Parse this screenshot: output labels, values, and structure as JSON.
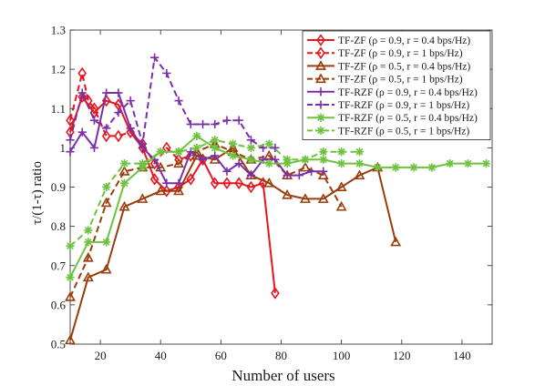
{
  "chart_data": {
    "type": "line",
    "title": "",
    "xlabel": "Number of users",
    "ylabel": "τ/(1-τ) ratio",
    "xlim": [
      10,
      150
    ],
    "ylim": [
      0.5,
      1.3
    ],
    "xticks": [
      20,
      40,
      60,
      80,
      100,
      120,
      140
    ],
    "yticks": [
      0.5,
      0.6,
      0.7,
      0.8,
      0.9,
      1.0,
      1.1,
      1.2,
      1.3
    ],
    "grid": false,
    "legend_position": "top-right",
    "series": [
      {
        "name": "TF-ZF (ρ = 0.9, r = 0.4 bps/Hz)",
        "color": "#e8141e",
        "dash": "solid",
        "marker": "diamond",
        "x": [
          10,
          14,
          18,
          22,
          26,
          30,
          34,
          38,
          42,
          46,
          50,
          54,
          58,
          62,
          66,
          70,
          74,
          78
        ],
        "y": [
          1.04,
          1.13,
          1.09,
          1.12,
          1.11,
          1.04,
          1.0,
          0.92,
          0.89,
          0.9,
          0.92,
          0.97,
          0.91,
          0.91,
          0.91,
          0.9,
          0.91,
          0.63
        ]
      },
      {
        "name": "TF-ZF (ρ = 0.9, r = 1 bps/Hz)",
        "color": "#e8141e",
        "dash": "dashed",
        "marker": "diamond",
        "x": [
          10,
          14,
          16,
          18,
          22,
          26,
          30,
          34,
          38,
          42,
          46,
          50
        ],
        "y": [
          1.07,
          1.19,
          1.12,
          1.1,
          1.03,
          1.03,
          1.04,
          1.01,
          0.96,
          1.0,
          0.97,
          0.98
        ]
      },
      {
        "name": "TF-ZF (ρ = 0.5, r = 0.4 bps/Hz)",
        "color": "#9a3d0d",
        "dash": "solid",
        "marker": "triangle",
        "x": [
          10,
          16,
          22,
          28,
          34,
          40,
          46,
          52,
          58,
          64,
          70,
          76,
          82,
          88,
          94,
          100,
          106,
          112,
          118
        ],
        "y": [
          0.51,
          0.67,
          0.69,
          0.85,
          0.87,
          0.89,
          0.89,
          0.98,
          0.97,
          1.0,
          0.93,
          0.91,
          0.88,
          0.87,
          0.87,
          0.9,
          0.93,
          0.95,
          0.76
        ]
      },
      {
        "name": "TF-ZF (ρ = 0.5, r = 1 bps/Hz)",
        "color": "#9a3d0d",
        "dash": "dashed",
        "marker": "triangle",
        "x": [
          10,
          16,
          22,
          28,
          34,
          40,
          46,
          52,
          58,
          64,
          70,
          76,
          82,
          88,
          94,
          100
        ],
        "y": [
          0.62,
          0.72,
          0.86,
          0.94,
          0.95,
          0.95,
          0.96,
          0.99,
          1.01,
          0.99,
          0.97,
          0.98,
          0.93,
          0.95,
          0.93,
          0.85
        ]
      },
      {
        "name": "TF-RZF (ρ = 0.9, r = 0.4 bps/Hz)",
        "color": "#7b2fa8",
        "dash": "solid",
        "marker": "plus",
        "x": [
          10,
          14,
          18,
          22,
          26,
          30,
          34,
          38,
          42,
          46,
          50,
          54,
          58,
          62,
          66,
          70,
          74,
          78,
          82,
          86,
          90,
          94
        ],
        "y": [
          0.99,
          1.04,
          1.0,
          1.14,
          1.14,
          1.05,
          1.0,
          0.97,
          0.91,
          0.91,
          0.99,
          0.97,
          0.98,
          0.94,
          0.96,
          0.93,
          0.97,
          0.97,
          0.93,
          0.93,
          0.94,
          0.94
        ]
      },
      {
        "name": "TF-RZF (ρ = 0.9, r = 1 bps/Hz)",
        "color": "#7b2fa8",
        "dash": "dashed",
        "marker": "plus",
        "x": [
          10,
          14,
          18,
          22,
          26,
          30,
          34,
          38,
          42,
          46,
          50,
          54,
          58,
          62,
          66,
          70,
          74,
          78
        ],
        "y": [
          1.02,
          1.14,
          1.07,
          1.05,
          1.09,
          1.12,
          1.01,
          1.23,
          1.19,
          1.12,
          1.06,
          1.06,
          1.06,
          1.07,
          1.07,
          1.02,
          1.0,
          1.0
        ]
      },
      {
        "name": "TF-RZF (ρ = 0.5, r = 0.4 bps/Hz)",
        "color": "#6ec23f",
        "dash": "solid",
        "marker": "asterisk",
        "x": [
          10,
          16,
          22,
          28,
          34,
          40,
          46,
          52,
          58,
          64,
          70,
          76,
          82,
          88,
          94,
          100,
          106,
          112,
          118,
          124,
          130,
          136,
          142,
          148
        ],
        "y": [
          0.67,
          0.76,
          0.76,
          0.91,
          0.95,
          0.99,
          0.99,
          1.03,
          1.0,
          0.98,
          0.97,
          0.96,
          0.96,
          0.97,
          0.97,
          0.96,
          0.96,
          0.95,
          0.95,
          0.95,
          0.95,
          0.96,
          0.96,
          0.96
        ]
      },
      {
        "name": "TF-RZF (ρ = 0.5, r = 1 bps/Hz)",
        "color": "#6ec23f",
        "dash": "dashed",
        "marker": "asterisk",
        "x": [
          10,
          16,
          22,
          28,
          34,
          40,
          46,
          52,
          58,
          64,
          70,
          76,
          82,
          88,
          94,
          100,
          106
        ],
        "y": [
          0.75,
          0.79,
          0.9,
          0.96,
          0.96,
          0.99,
          0.99,
          1.0,
          1.02,
          1.01,
          1.0,
          1.01,
          0.97,
          0.97,
          0.99,
          0.99,
          0.99
        ]
      }
    ]
  }
}
